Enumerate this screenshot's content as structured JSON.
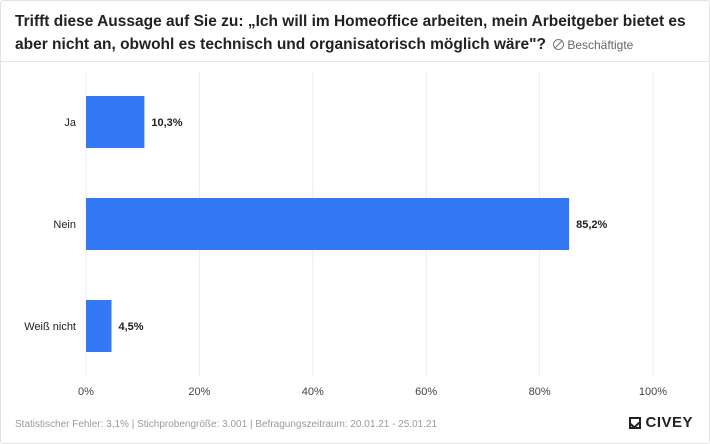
{
  "header": {
    "title": "Trifft diese Aussage auf Sie zu: „Ich will im Homeoffice arbeiten, mein Arbeitgeber bietet es aber nicht an, obwohl es technisch und organisatorisch möglich wäre\"?",
    "tag_label": "Beschäftigte"
  },
  "footer": {
    "text": "Statistischer Fehler: 3,1% | Stichprobengröße: 3.001 | Befragungszeitraum: 20.01.21 - 25.01.21"
  },
  "brand": {
    "name": "CIVEY"
  },
  "colors": {
    "bar": "#3478f6",
    "grid": "#ececec",
    "text": "#222222",
    "tick": "#444444"
  },
  "chart_data": {
    "type": "bar",
    "orientation": "horizontal",
    "categories": [
      "Ja",
      "Nein",
      "Weiß nicht"
    ],
    "values": [
      10.3,
      85.2,
      4.5
    ],
    "value_labels": [
      "10,3%",
      "85,2%",
      "4,5%"
    ],
    "xlim": [
      0,
      100
    ],
    "xticks": [
      0,
      20,
      40,
      60,
      80,
      100
    ],
    "xtick_labels": [
      "0%",
      "20%",
      "40%",
      "60%",
      "80%",
      "100%"
    ],
    "grid": true
  }
}
